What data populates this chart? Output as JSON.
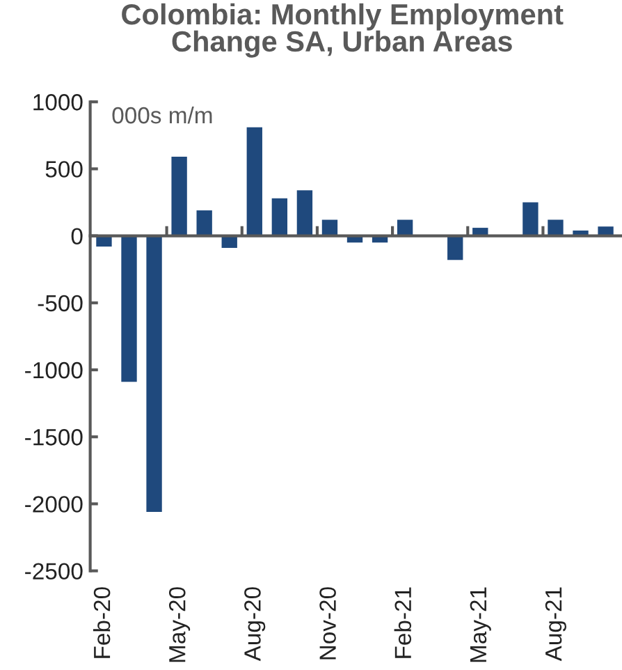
{
  "chart_data": {
    "type": "bar",
    "title": "Colombia: Monthly Employment\nChange SA, Urban Areas",
    "ylabel": "000s m/m",
    "categories": [
      "Feb-20",
      null,
      null,
      "May-20",
      null,
      null,
      "Aug-20",
      null,
      null,
      "Nov-20",
      null,
      null,
      "Feb-21",
      null,
      null,
      "May-21",
      null,
      null,
      "Aug-21",
      null,
      null
    ],
    "values": [
      -80,
      -1090,
      -2060,
      590,
      190,
      -90,
      810,
      280,
      340,
      120,
      -50,
      -50,
      120,
      null,
      -180,
      60,
      0,
      250,
      120,
      40,
      70
    ],
    "color": "#1f497d",
    "ylim": [
      -2500,
      1000
    ],
    "yticks": [
      -2500,
      -2000,
      -1500,
      -1000,
      -500,
      0,
      500,
      1000
    ]
  }
}
